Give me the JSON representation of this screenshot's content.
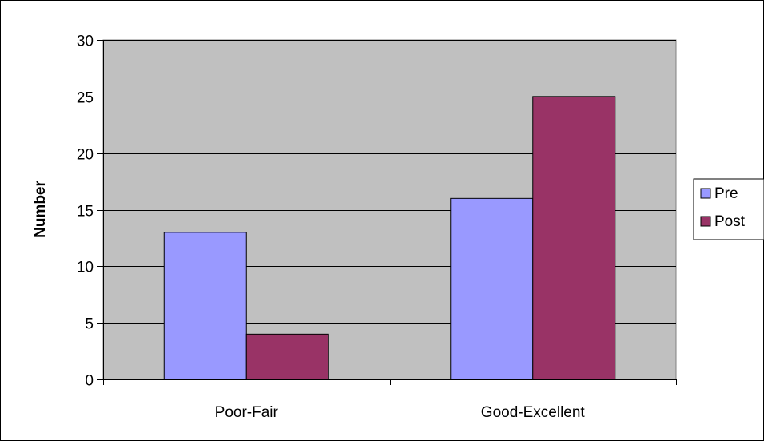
{
  "chart_data": {
    "type": "bar",
    "title": "",
    "xlabel": "",
    "ylabel": "Number",
    "categories": [
      "Poor-Fair",
      "Good-Excellent"
    ],
    "series": [
      {
        "name": "Pre",
        "values": [
          13,
          16
        ],
        "color": "#9999ff"
      },
      {
        "name": "Post",
        "values": [
          4,
          25
        ],
        "color": "#993366"
      }
    ],
    "ylim": [
      0,
      30
    ],
    "yticks": [
      0,
      5,
      10,
      15,
      20,
      25,
      30
    ],
    "grid": true,
    "legend_position": "right",
    "plot_background": "#c0c0c0"
  }
}
